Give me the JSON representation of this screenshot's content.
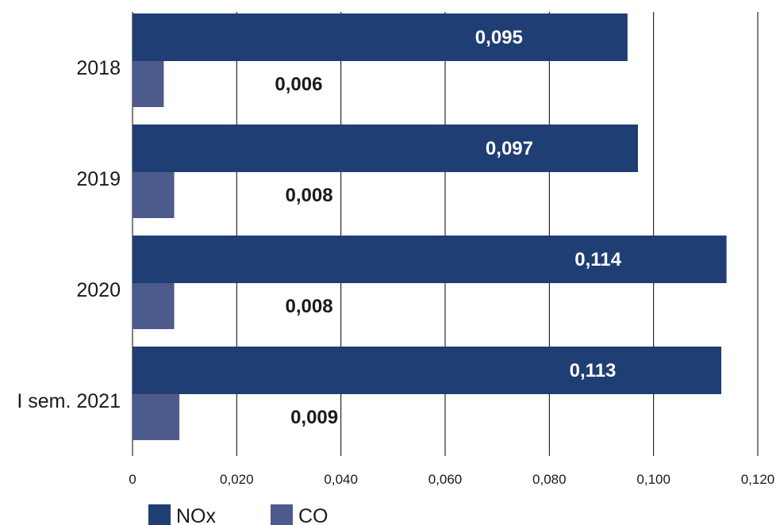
{
  "chart_data": {
    "type": "bar",
    "orientation": "horizontal",
    "categories": [
      "2018",
      "2019",
      "2020",
      "I sem. 2021"
    ],
    "series": [
      {
        "name": "NOx",
        "values": [
          0.095,
          0.097,
          0.114,
          0.113
        ],
        "labels": [
          "0,095",
          "0,097",
          "0,114",
          "0,113"
        ],
        "color": "#1f3e73"
      },
      {
        "name": "CO",
        "values": [
          0.006,
          0.008,
          0.008,
          0.009
        ],
        "labels": [
          "0,006",
          "0,008",
          "0,008",
          "0,009"
        ],
        "color": "#4c5a8c"
      }
    ],
    "xlim": [
      0,
      0.12
    ],
    "x_ticks": [
      0,
      0.02,
      0.04,
      0.06,
      0.08,
      0.1,
      0.12
    ],
    "x_tick_labels": [
      "0",
      "0,020",
      "0,040",
      "0,060",
      "0,080",
      "0,100",
      "0,120"
    ],
    "grid": "vertical",
    "legend_position": "bottom-left"
  }
}
